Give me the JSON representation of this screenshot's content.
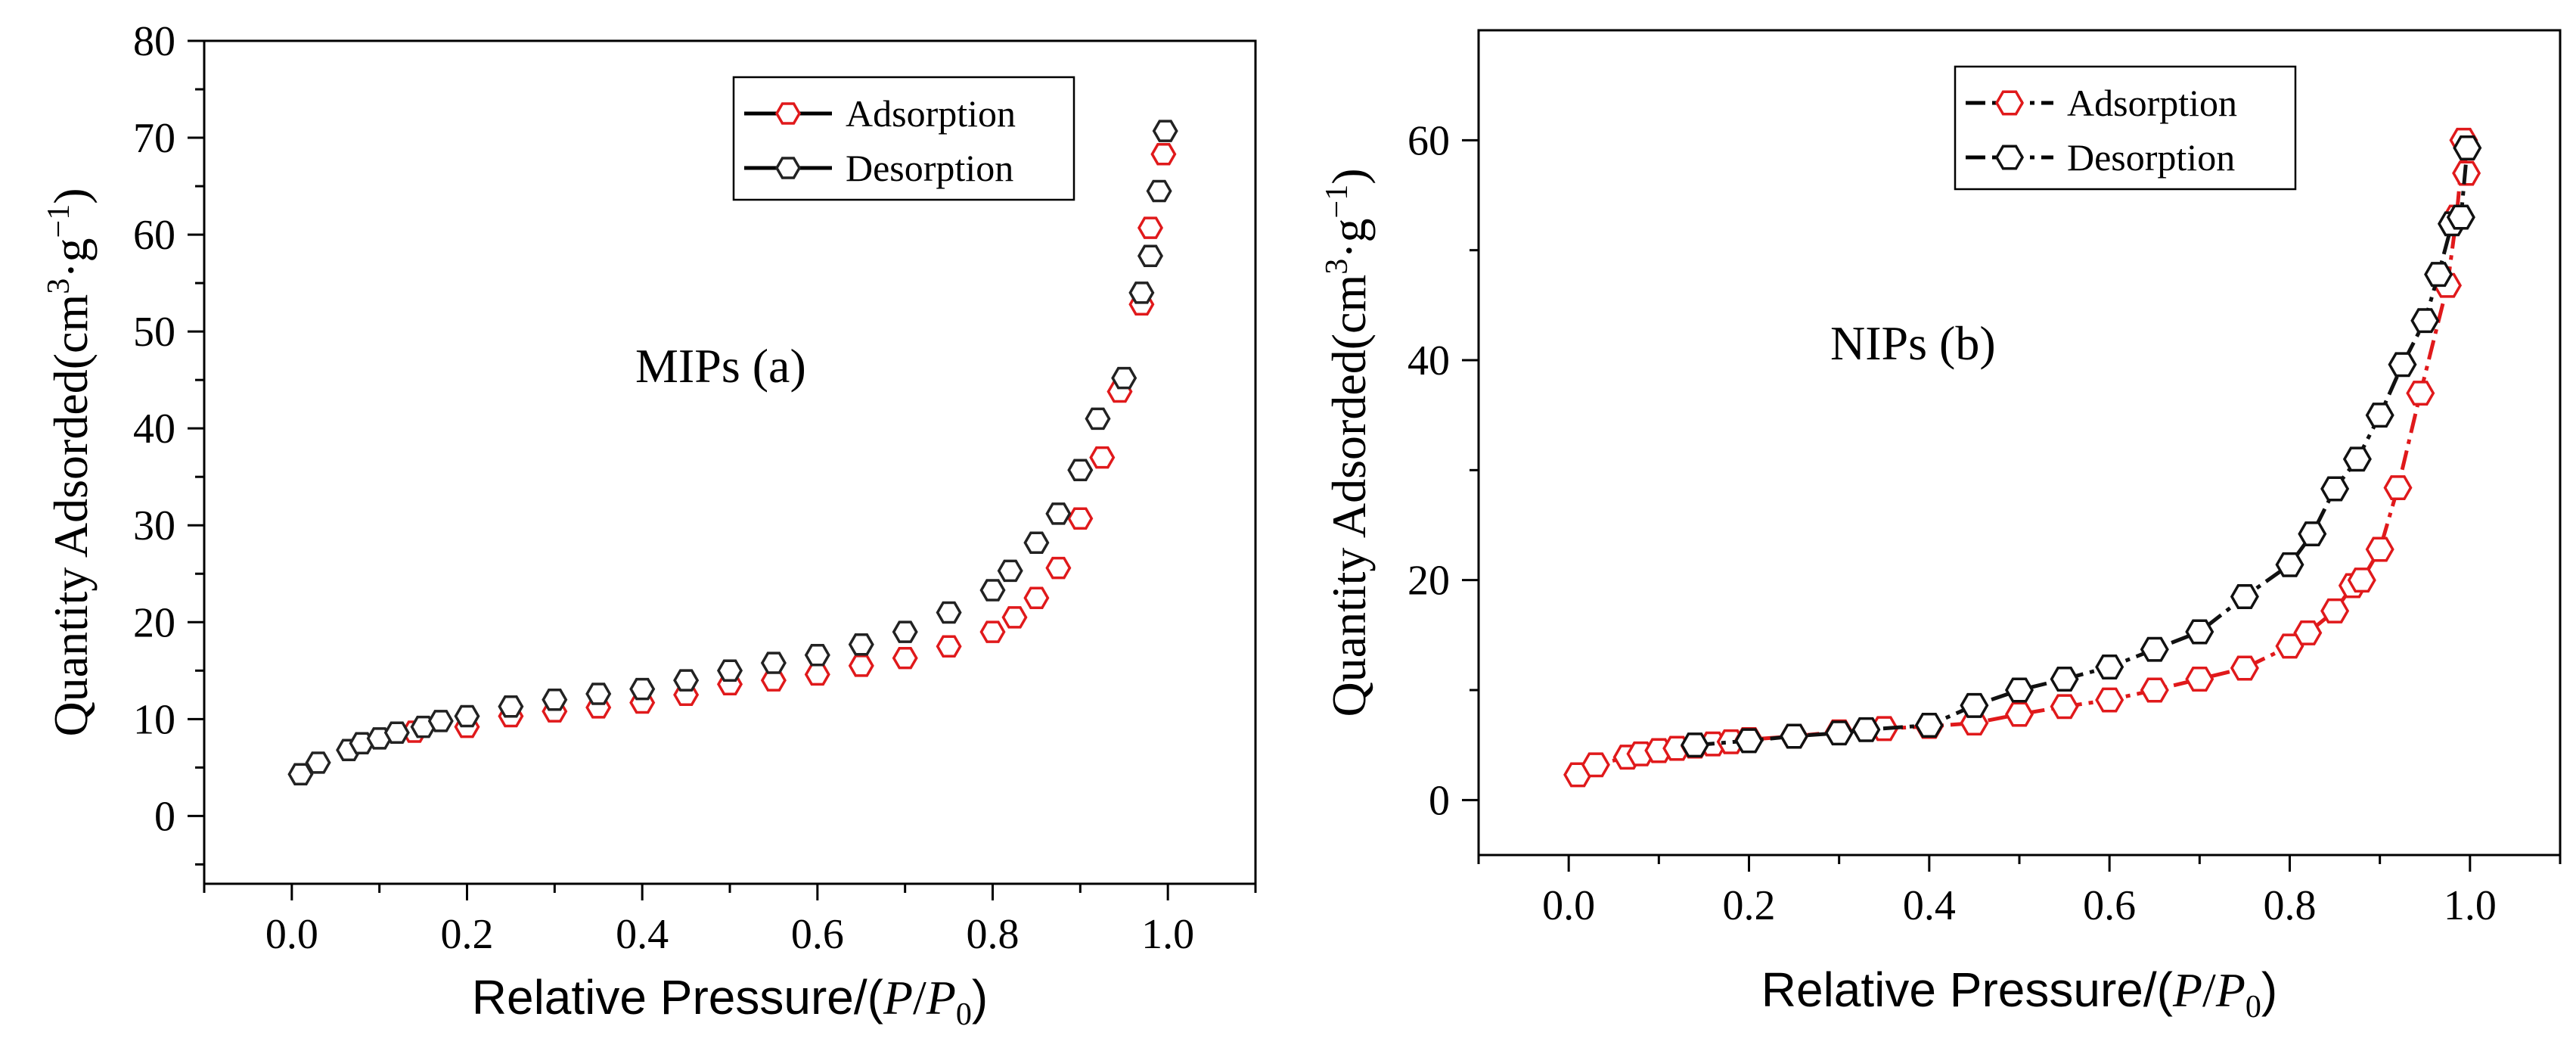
{
  "chart_data": [
    {
      "type": "scatter",
      "annotation": "MIPs (a)",
      "xlabel": "Relative Pressure/(P/P0)",
      "ylabel": "Quantity Adsorded(cm3·g−1)",
      "xlim": [
        -0.1,
        1.1
      ],
      "ylim": [
        -7,
        80
      ],
      "xticks": [
        "0.0",
        "0.2",
        "0.4",
        "0.6",
        "0.8",
        "1.0"
      ],
      "yticks": [
        "0",
        "10",
        "20",
        "30",
        "40",
        "50",
        "60",
        "70",
        "80"
      ],
      "legend_position": "top-right",
      "series": [
        {
          "name": "Adsorption",
          "color": "#e0191b",
          "lines": false,
          "x": [
            0.14,
            0.2,
            0.25,
            0.3,
            0.35,
            0.4,
            0.45,
            0.5,
            0.55,
            0.6,
            0.65,
            0.7,
            0.75,
            0.8,
            0.825,
            0.85,
            0.875,
            0.9,
            0.925,
            0.945,
            0.97,
            0.98,
            0.995
          ],
          "y": [
            8.7,
            9.2,
            10.3,
            10.8,
            11.2,
            11.7,
            12.5,
            13.6,
            14.0,
            14.6,
            15.5,
            16.3,
            17.5,
            19.0,
            20.5,
            22.5,
            25.6,
            30.7,
            37.0,
            43.8,
            52.8,
            60.7,
            68.3
          ]
        },
        {
          "name": "Desorption",
          "color": "#222222",
          "lines": false,
          "x": [
            0.01,
            0.03,
            0.065,
            0.08,
            0.1,
            0.12,
            0.15,
            0.17,
            0.2,
            0.25,
            0.3,
            0.35,
            0.4,
            0.45,
            0.5,
            0.55,
            0.6,
            0.65,
            0.7,
            0.75,
            0.8,
            0.82,
            0.85,
            0.875,
            0.9,
            0.92,
            0.95,
            0.97,
            0.98,
            0.99,
            0.997
          ],
          "y": [
            4.3,
            5.5,
            6.8,
            7.5,
            8.0,
            8.6,
            9.2,
            9.8,
            10.3,
            11.3,
            12.0,
            12.6,
            13.1,
            14.0,
            15.0,
            15.8,
            16.6,
            17.7,
            19.0,
            21.0,
            23.3,
            25.3,
            28.2,
            31.2,
            35.7,
            41.0,
            45.2,
            54.0,
            57.8,
            64.5,
            70.7
          ]
        }
      ]
    },
    {
      "type": "line",
      "annotation": "NIPs (b)",
      "xlabel": "Relative Pressure/(P/P0)",
      "ylabel": "Quantity Adsorded(cm3·g−1)",
      "xlim": [
        -0.1,
        1.1
      ],
      "ylim": [
        -5,
        70
      ],
      "xticks": [
        "0.0",
        "0.2",
        "0.4",
        "0.6",
        "0.8",
        "1.0"
      ],
      "yticks": [
        "0",
        "20",
        "40",
        "60"
      ],
      "legend_position": "top-right",
      "series": [
        {
          "name": "Adsorption",
          "color": "#e0191b",
          "lines": true,
          "x": [
            0.01,
            0.03,
            0.065,
            0.08,
            0.1,
            0.12,
            0.14,
            0.16,
            0.18,
            0.2,
            0.25,
            0.3,
            0.35,
            0.4,
            0.45,
            0.5,
            0.55,
            0.6,
            0.65,
            0.7,
            0.75,
            0.8,
            0.82,
            0.85,
            0.87,
            0.88,
            0.9,
            0.92,
            0.945,
            0.975,
            0.985,
            0.993,
            0.996
          ],
          "y": [
            2.3,
            3.2,
            3.9,
            4.2,
            4.5,
            4.7,
            4.9,
            5.1,
            5.3,
            5.5,
            5.8,
            6.2,
            6.5,
            6.7,
            7.0,
            7.8,
            8.5,
            9.1,
            10.0,
            11.0,
            12.0,
            14.0,
            15.2,
            17.2,
            19.5,
            20.0,
            22.8,
            28.4,
            37.0,
            46.8,
            53.0,
            60.0,
            57.0
          ]
        },
        {
          "name": "Desorption",
          "color": "#111111",
          "lines": true,
          "x": [
            0.14,
            0.2,
            0.25,
            0.3,
            0.33,
            0.4,
            0.45,
            0.5,
            0.55,
            0.6,
            0.65,
            0.7,
            0.75,
            0.8,
            0.825,
            0.85,
            0.875,
            0.9,
            0.925,
            0.95,
            0.965,
            0.98,
            0.99,
            0.997
          ],
          "y": [
            5.0,
            5.4,
            5.8,
            6.1,
            6.4,
            6.8,
            8.6,
            10.0,
            11.0,
            12.1,
            13.7,
            15.3,
            18.5,
            21.4,
            24.2,
            28.3,
            31.0,
            35.0,
            39.6,
            43.6,
            47.8,
            52.4,
            53.0,
            59.3
          ]
        }
      ]
    }
  ]
}
